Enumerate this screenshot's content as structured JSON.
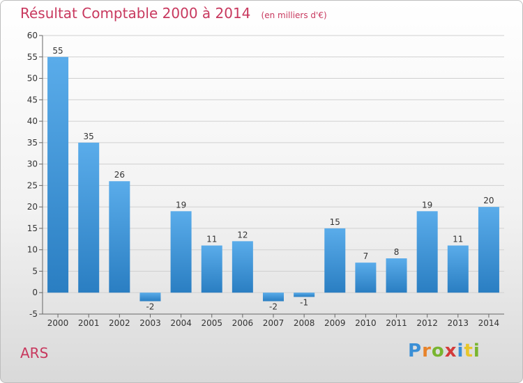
{
  "header": {
    "title": "Résultat Comptable 2000 à 2014",
    "subtitle": "(en milliers d'€)"
  },
  "commune": "ARS",
  "logo": {
    "text": "Proxiti",
    "letters": [
      {
        "ch": "P",
        "color": "#3a8fd6"
      },
      {
        "ch": "r",
        "color": "#e8832a"
      },
      {
        "ch": "o",
        "color": "#79b530"
      },
      {
        "ch": "x",
        "color": "#d33a3a"
      },
      {
        "ch": "i",
        "color": "#3a8fd6"
      },
      {
        "ch": "t",
        "color": "#e8c62a"
      },
      {
        "ch": "i",
        "color": "#79b530"
      }
    ]
  },
  "colors": {
    "bar_light": "#5aacea",
    "bar_dark": "#2a7ec2",
    "title": "#c8385e",
    "grid": "#d0d0d0"
  },
  "chart_data": {
    "type": "bar",
    "title": "Résultat Comptable 2000 à 2014",
    "subtitle": "(en milliers d'€)",
    "categories": [
      "2000",
      "2001",
      "2002",
      "2003",
      "2004",
      "2005",
      "2006",
      "2007",
      "2008",
      "2009",
      "2010",
      "2011",
      "2012",
      "2013",
      "2014"
    ],
    "values": [
      55,
      35,
      26,
      -2,
      19,
      11,
      12,
      -2,
      -1,
      15,
      7,
      8,
      19,
      11,
      20
    ],
    "labels": [
      "55",
      "35",
      "26",
      "-2",
      "19",
      "11",
      "12",
      "-2",
      "-1",
      "15",
      "7",
      "8",
      "19",
      "11",
      "20"
    ],
    "ylim": [
      -5,
      60
    ],
    "yticks": [
      -5,
      0,
      5,
      10,
      15,
      20,
      25,
      30,
      35,
      40,
      45,
      50,
      55,
      60
    ],
    "grid": true,
    "xlabel": "",
    "ylabel": ""
  }
}
